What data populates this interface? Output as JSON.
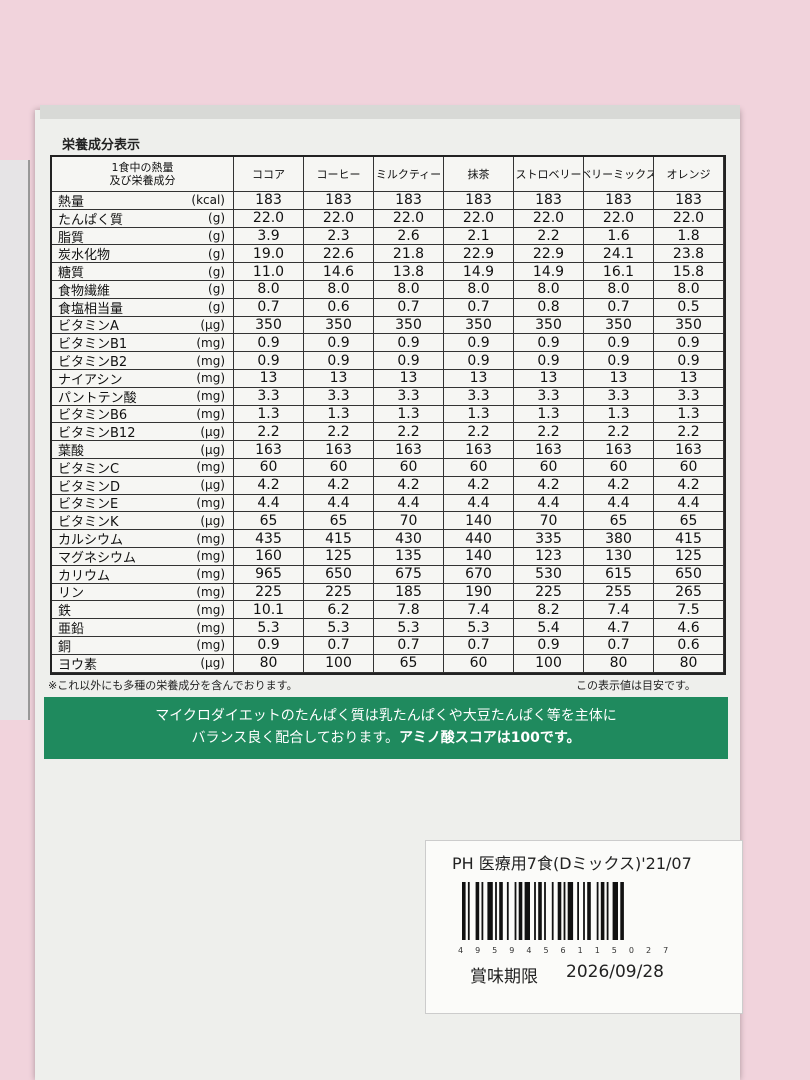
{
  "panel": {
    "title": "栄養成分表示"
  },
  "table": {
    "header": {
      "corner": [
        "1食中の熱量",
        "及び栄養成分"
      ],
      "columns": [
        "ココア",
        "コーヒー",
        "ミルクティー",
        "抹茶",
        "ストロベリー",
        "ベリーミックス",
        "オレンジ"
      ]
    },
    "rows": [
      {
        "label": "熱量",
        "unit": "(kcal)",
        "values": [
          "183",
          "183",
          "183",
          "183",
          "183",
          "183",
          "183"
        ]
      },
      {
        "label": "たんぱく質",
        "unit": "(g)",
        "values": [
          "22.0",
          "22.0",
          "22.0",
          "22.0",
          "22.0",
          "22.0",
          "22.0"
        ]
      },
      {
        "label": "脂質",
        "unit": "(g)",
        "values": [
          "3.9",
          "2.3",
          "2.6",
          "2.1",
          "2.2",
          "1.6",
          "1.8"
        ]
      },
      {
        "label": "炭水化物",
        "unit": "(g)",
        "values": [
          "19.0",
          "22.6",
          "21.8",
          "22.9",
          "22.9",
          "24.1",
          "23.8"
        ]
      },
      {
        "label": "糖質",
        "unit": "(g)",
        "values": [
          "11.0",
          "14.6",
          "13.8",
          "14.9",
          "14.9",
          "16.1",
          "15.8"
        ]
      },
      {
        "label": "食物繊維",
        "unit": "(g)",
        "values": [
          "8.0",
          "8.0",
          "8.0",
          "8.0",
          "8.0",
          "8.0",
          "8.0"
        ]
      },
      {
        "label": "食塩相当量",
        "unit": "(g)",
        "values": [
          "0.7",
          "0.6",
          "0.7",
          "0.7",
          "0.8",
          "0.7",
          "0.5"
        ]
      },
      {
        "label": "ビタミンA",
        "unit": "(μg)",
        "values": [
          "350",
          "350",
          "350",
          "350",
          "350",
          "350",
          "350"
        ]
      },
      {
        "label": "ビタミンB1",
        "unit": "(mg)",
        "values": [
          "0.9",
          "0.9",
          "0.9",
          "0.9",
          "0.9",
          "0.9",
          "0.9"
        ]
      },
      {
        "label": "ビタミンB2",
        "unit": "(mg)",
        "values": [
          "0.9",
          "0.9",
          "0.9",
          "0.9",
          "0.9",
          "0.9",
          "0.9"
        ]
      },
      {
        "label": "ナイアシン",
        "unit": "(mg)",
        "values": [
          "13",
          "13",
          "13",
          "13",
          "13",
          "13",
          "13"
        ]
      },
      {
        "label": "パントテン酸",
        "unit": "(mg)",
        "values": [
          "3.3",
          "3.3",
          "3.3",
          "3.3",
          "3.3",
          "3.3",
          "3.3"
        ]
      },
      {
        "label": "ビタミンB6",
        "unit": "(mg)",
        "values": [
          "1.3",
          "1.3",
          "1.3",
          "1.3",
          "1.3",
          "1.3",
          "1.3"
        ]
      },
      {
        "label": "ビタミンB12",
        "unit": "(μg)",
        "values": [
          "2.2",
          "2.2",
          "2.2",
          "2.2",
          "2.2",
          "2.2",
          "2.2"
        ]
      },
      {
        "label": "葉酸",
        "unit": "(μg)",
        "values": [
          "163",
          "163",
          "163",
          "163",
          "163",
          "163",
          "163"
        ]
      },
      {
        "label": "ビタミンC",
        "unit": "(mg)",
        "values": [
          "60",
          "60",
          "60",
          "60",
          "60",
          "60",
          "60"
        ]
      },
      {
        "label": "ビタミンD",
        "unit": "(μg)",
        "values": [
          "4.2",
          "4.2",
          "4.2",
          "4.2",
          "4.2",
          "4.2",
          "4.2"
        ]
      },
      {
        "label": "ビタミンE",
        "unit": "(mg)",
        "values": [
          "4.4",
          "4.4",
          "4.4",
          "4.4",
          "4.4",
          "4.4",
          "4.4"
        ]
      },
      {
        "label": "ビタミンK",
        "unit": "(μg)",
        "values": [
          "65",
          "65",
          "70",
          "140",
          "70",
          "65",
          "65"
        ]
      },
      {
        "label": "カルシウム",
        "unit": "(mg)",
        "values": [
          "435",
          "415",
          "430",
          "440",
          "335",
          "380",
          "415"
        ]
      },
      {
        "label": "マグネシウム",
        "unit": "(mg)",
        "values": [
          "160",
          "125",
          "135",
          "140",
          "123",
          "130",
          "125"
        ]
      },
      {
        "label": "カリウム",
        "unit": "(mg)",
        "values": [
          "965",
          "650",
          "675",
          "670",
          "530",
          "615",
          "650"
        ]
      },
      {
        "label": "リン",
        "unit": "(mg)",
        "values": [
          "225",
          "225",
          "185",
          "190",
          "225",
          "255",
          "265"
        ]
      },
      {
        "label": "鉄",
        "unit": "(mg)",
        "values": [
          "10.1",
          "6.2",
          "7.8",
          "7.4",
          "8.2",
          "7.4",
          "7.5"
        ]
      },
      {
        "label": "亜鉛",
        "unit": "(mg)",
        "values": [
          "5.3",
          "5.3",
          "5.3",
          "5.3",
          "5.4",
          "4.7",
          "4.6"
        ]
      },
      {
        "label": "銅",
        "unit": "(mg)",
        "values": [
          "0.9",
          "0.7",
          "0.7",
          "0.7",
          "0.9",
          "0.7",
          "0.6"
        ]
      },
      {
        "label": "ヨウ素",
        "unit": "(μg)",
        "values": [
          "80",
          "100",
          "65",
          "60",
          "100",
          "80",
          "80"
        ]
      }
    ]
  },
  "notes": {
    "left": "※これ以外にも多種の栄養成分を含んでおります。",
    "right": "この表示値は目安です。"
  },
  "banner": {
    "line1": "マイクロダイエットのたんぱく質は乳たんぱくや大豆たんぱく等を主体に",
    "line2": "バランス良く配合しております。",
    "emphasis": "アミノ酸スコアは100です。"
  },
  "sticker": {
    "code": "PH 医療用7食(Dミックス)'21/07",
    "barcode_digits": "4959456115027",
    "expiry_label": "賞味期限",
    "expiry_date": "2026/09/28"
  }
}
